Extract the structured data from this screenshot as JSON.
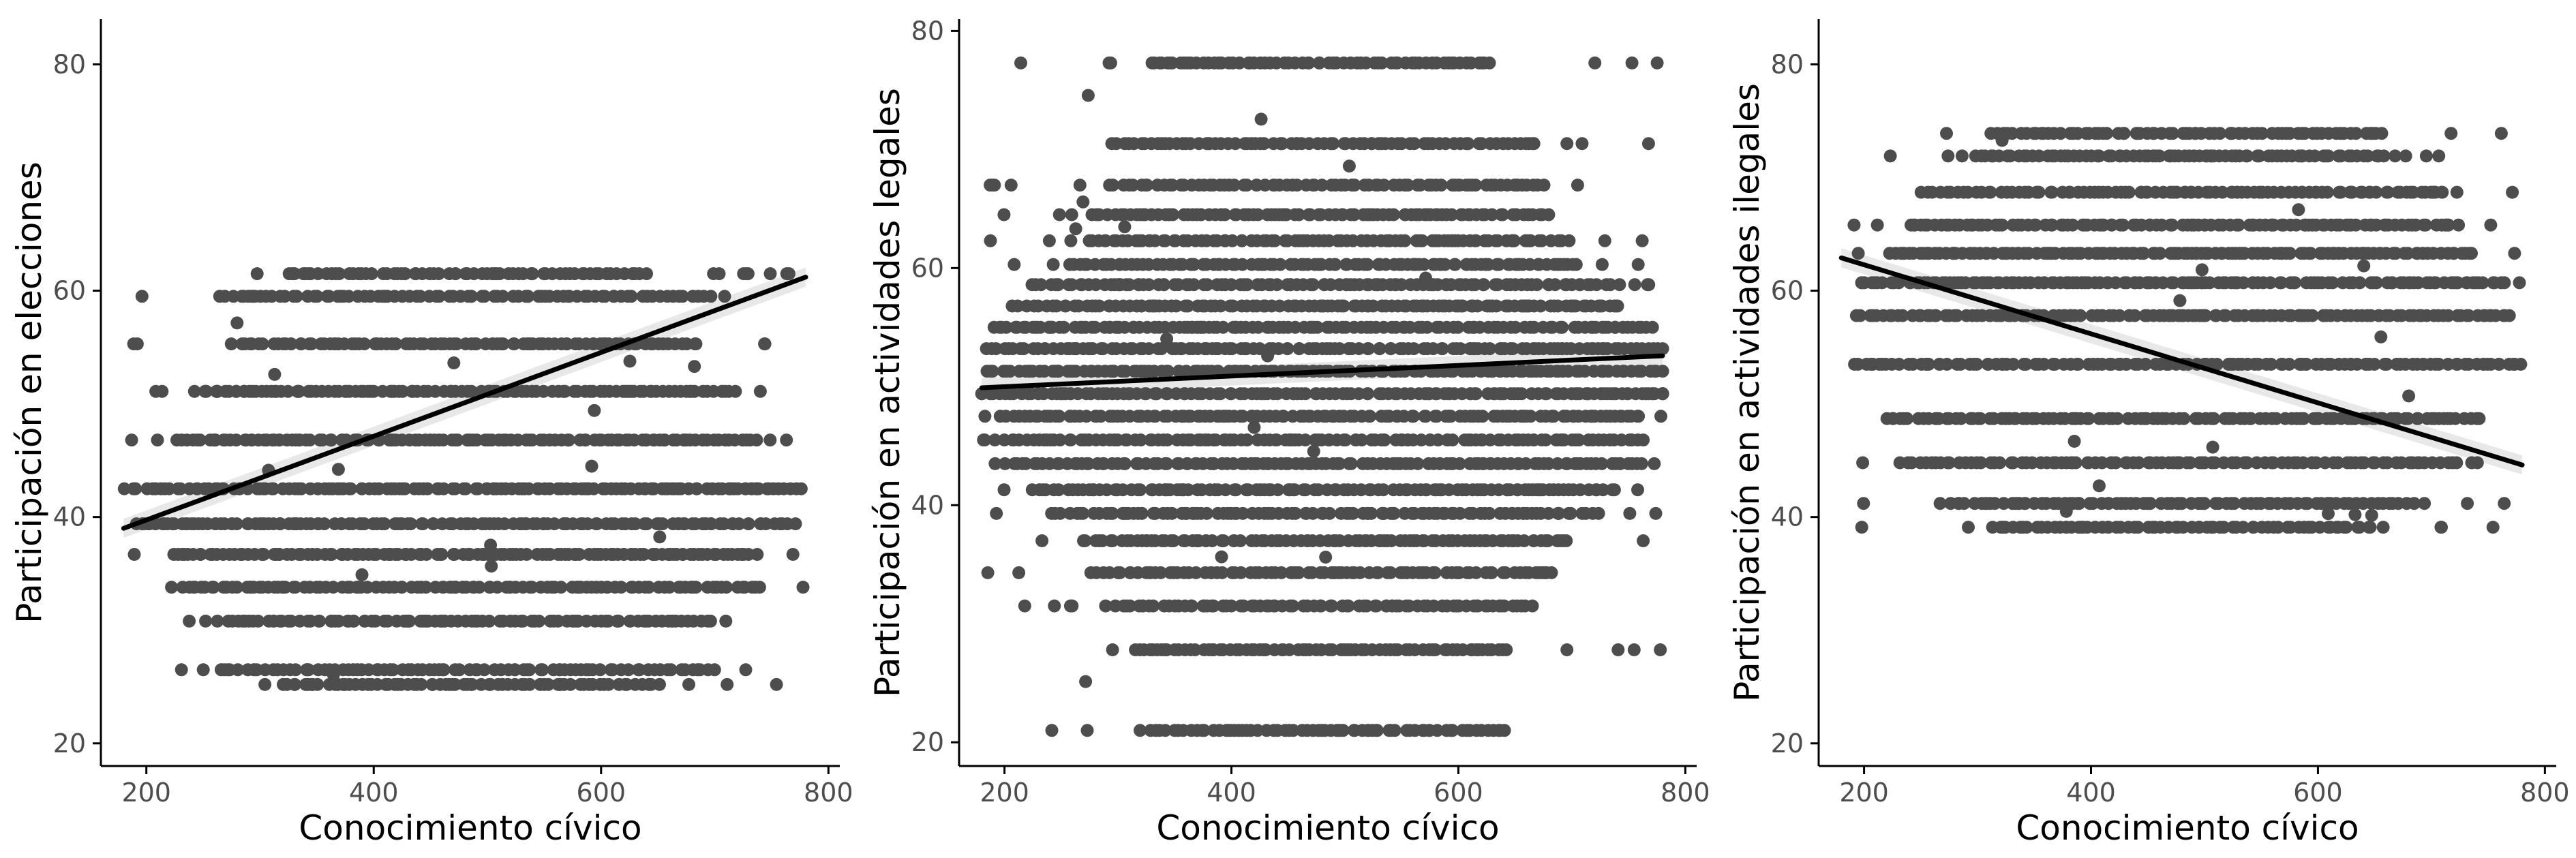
{
  "colors": {
    "points": "#4d4d4d",
    "line": "#000000",
    "band": "#d9d9d9",
    "axis": "#000000",
    "tick_text": "#4d4d4d"
  },
  "chart_data": [
    {
      "type": "scatter",
      "xlabel": "Conocimiento cívico",
      "ylabel": "Participación en elecciones",
      "xlim": [
        160,
        810
      ],
      "ylim": [
        18,
        84
      ],
      "xticks": [
        200,
        400,
        600,
        800
      ],
      "yticks": [
        20,
        40,
        60,
        80
      ],
      "grid": false,
      "y_levels": [
        25.2,
        26.5,
        30.8,
        33.8,
        36.7,
        39.4,
        42.5,
        46.8,
        51.1,
        55.3,
        59.5,
        61.5
      ],
      "x_range": [
        180,
        780
      ],
      "trend": {
        "x": [
          180,
          780
        ],
        "y": [
          39.0,
          61.2
        ]
      }
    },
    {
      "type": "scatter",
      "xlabel": "Conocimiento cívico",
      "ylabel": "Participación en actividades legales",
      "xlim": [
        160,
        810
      ],
      "ylim": [
        18,
        81
      ],
      "xticks": [
        200,
        400,
        600,
        800
      ],
      "yticks": [
        20,
        40,
        60,
        80
      ],
      "grid": false,
      "y_levels": [
        21.0,
        27.8,
        31.5,
        34.3,
        37.0,
        39.3,
        41.3,
        43.5,
        45.5,
        47.5,
        49.4,
        51.3,
        53.2,
        55.0,
        56.8,
        58.6,
        60.3,
        62.3,
        64.5,
        67.0,
        70.5,
        77.3
      ],
      "x_range": [
        180,
        780
      ],
      "trend": {
        "x": [
          180,
          780
        ],
        "y": [
          49.9,
          52.6
        ]
      }
    },
    {
      "type": "scatter",
      "xlabel": "Conocimiento cívico",
      "ylabel": "Participación en actividades ilegales",
      "xlim": [
        160,
        810
      ],
      "ylim": [
        18,
        84
      ],
      "xticks": [
        200,
        400,
        600,
        800
      ],
      "yticks": [
        20,
        40,
        60,
        80
      ],
      "grid": false,
      "y_levels": [
        39.1,
        41.2,
        44.8,
        48.7,
        53.5,
        57.8,
        60.7,
        63.3,
        65.8,
        68.7,
        71.9,
        73.9
      ],
      "x_range": [
        180,
        780
      ],
      "trend": {
        "x": [
          180,
          780
        ],
        "y": [
          62.9,
          44.6
        ]
      }
    }
  ]
}
